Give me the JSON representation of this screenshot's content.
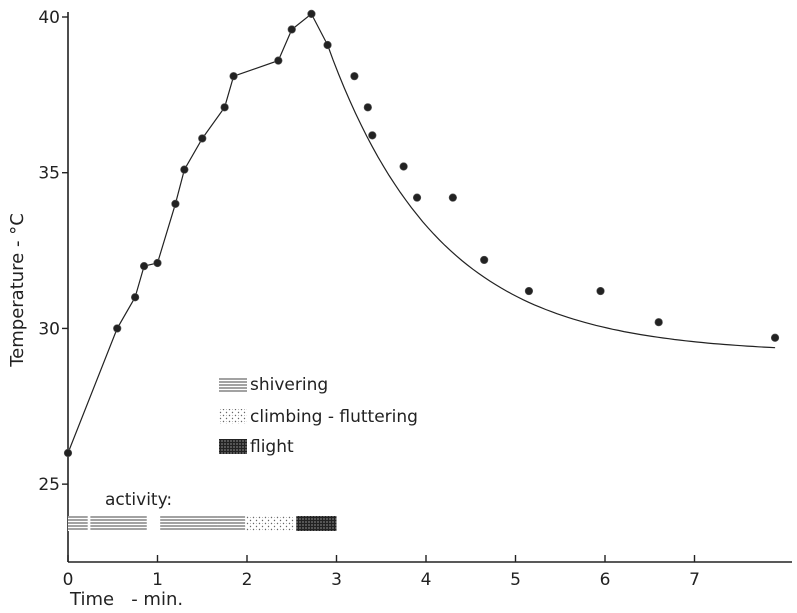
{
  "chart_data": {
    "type": "line",
    "xlabel": "Time   - min.",
    "ylabel": "Temperature - °C",
    "xlim": [
      0,
      8
    ],
    "ylim": [
      22.5,
      40
    ],
    "x_ticks": [
      0,
      1,
      2,
      3,
      4,
      5,
      6,
      7
    ],
    "y_ticks": [
      25,
      30,
      35,
      40
    ],
    "grid": false,
    "observations": [
      {
        "x": 0.0,
        "y": 26.0
      },
      {
        "x": 0.55,
        "y": 30.0
      },
      {
        "x": 0.75,
        "y": 31.0
      },
      {
        "x": 0.85,
        "y": 32.0
      },
      {
        "x": 1.0,
        "y": 32.1
      },
      {
        "x": 1.2,
        "y": 34.0
      },
      {
        "x": 1.3,
        "y": 35.1
      },
      {
        "x": 1.5,
        "y": 36.1
      },
      {
        "x": 1.75,
        "y": 37.1
      },
      {
        "x": 1.85,
        "y": 38.1
      },
      {
        "x": 2.35,
        "y": 38.6
      },
      {
        "x": 2.5,
        "y": 39.6
      },
      {
        "x": 2.72,
        "y": 40.1
      },
      {
        "x": 2.9,
        "y": 39.1
      },
      {
        "x": 3.2,
        "y": 38.1
      },
      {
        "x": 3.35,
        "y": 37.1
      },
      {
        "x": 3.4,
        "y": 36.2
      },
      {
        "x": 3.75,
        "y": 35.2
      },
      {
        "x": 3.9,
        "y": 34.2
      },
      {
        "x": 4.3,
        "y": 34.2
      },
      {
        "x": 4.65,
        "y": 32.2
      },
      {
        "x": 5.15,
        "y": 31.2
      },
      {
        "x": 5.95,
        "y": 31.2
      },
      {
        "x": 6.6,
        "y": 30.2
      },
      {
        "x": 7.9,
        "y": 29.7
      }
    ],
    "connected_segment": [
      {
        "x": 0.0,
        "y": 26.0
      },
      {
        "x": 0.55,
        "y": 30.0
      },
      {
        "x": 0.75,
        "y": 31.0
      },
      {
        "x": 0.85,
        "y": 32.0
      },
      {
        "x": 1.0,
        "y": 32.1
      },
      {
        "x": 1.2,
        "y": 34.0
      },
      {
        "x": 1.3,
        "y": 35.1
      },
      {
        "x": 1.5,
        "y": 36.1
      },
      {
        "x": 1.75,
        "y": 37.1
      },
      {
        "x": 1.85,
        "y": 38.1
      },
      {
        "x": 2.35,
        "y": 38.6
      },
      {
        "x": 2.5,
        "y": 39.6
      },
      {
        "x": 2.72,
        "y": 40.1
      },
      {
        "x": 2.9,
        "y": 39.1
      }
    ],
    "fitted_cooling_curve": {
      "form": "T = 29.2 + 9.9 * exp(-(t - 2.9) / 1.25)",
      "x_range": [
        2.9,
        7.9
      ]
    },
    "activity": {
      "label": "activity:",
      "legend": [
        {
          "key": "shivering",
          "label": "shivering",
          "pattern": "horizontal-lines"
        },
        {
          "key": "climbing",
          "label": "climbing - fluttering",
          "pattern": "stipple"
        },
        {
          "key": "flight",
          "label": "flight",
          "pattern": "crosshatch"
        }
      ],
      "bars": [
        {
          "start": 0.0,
          "end": 0.22,
          "activity": "shivering"
        },
        {
          "start": 0.25,
          "end": 0.88,
          "activity": "shivering"
        },
        {
          "start": 1.03,
          "end": 1.67,
          "activity": "shivering"
        },
        {
          "start": 1.67,
          "end": 1.98,
          "activity": "shivering"
        },
        {
          "start": 1.98,
          "end": 2.52,
          "activity": "climbing"
        },
        {
          "start": 2.55,
          "end": 3.0,
          "activity": "flight"
        }
      ]
    }
  }
}
